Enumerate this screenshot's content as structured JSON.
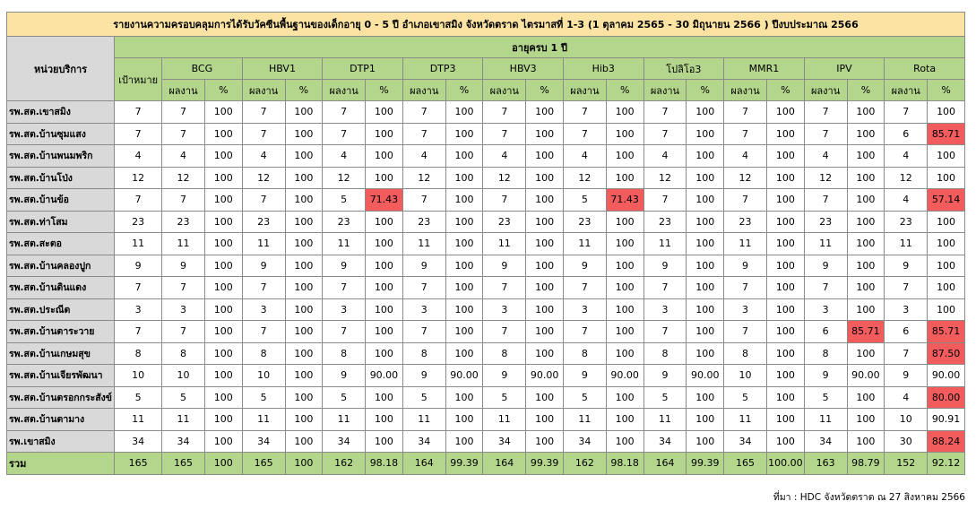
{
  "title": "รายงานความครอบคลุมการได้รับวัคซีนพื้นฐานของเด็กอายุ 0 - 5 ปี อำเภอเขาสมิง จังหวัดตราด ไตรมาสที่ 1-3 (1 ตุลาคม 2565 - 30 มิถุนายน 2566 ) ปีงบประมาณ 2566",
  "unit_header": "หน่วยบริการ",
  "age_group": "อายุครบ 1 ปี",
  "target_header": "เป้าหมาย",
  "result_header": "ผลงาน",
  "pct_header": "%",
  "vaccines": [
    "BCG",
    "HBV1",
    "DTP1",
    "DTP3",
    "HBV3",
    "Hib3",
    "โปลิโอ3",
    "MMR1",
    "IPV",
    "Rota"
  ],
  "rows": [
    {
      "unit": "รพ.สต.เขาสมิง",
      "target": "7",
      "cells": [
        [
          "7",
          "100"
        ],
        [
          "7",
          "100"
        ],
        [
          "7",
          "100"
        ],
        [
          "7",
          "100"
        ],
        [
          "7",
          "100"
        ],
        [
          "7",
          "100"
        ],
        [
          "7",
          "100"
        ],
        [
          "7",
          "100"
        ],
        [
          "7",
          "100"
        ],
        [
          "7",
          "100"
        ]
      ]
    },
    {
      "unit": "รพ.สต.บ้านซุมแสง",
      "target": "7",
      "cells": [
        [
          "7",
          "100"
        ],
        [
          "7",
          "100"
        ],
        [
          "7",
          "100"
        ],
        [
          "7",
          "100"
        ],
        [
          "7",
          "100"
        ],
        [
          "7",
          "100"
        ],
        [
          "7",
          "100"
        ],
        [
          "7",
          "100"
        ],
        [
          "7",
          "100"
        ],
        [
          "6",
          "85.71"
        ]
      ]
    },
    {
      "unit": "รพ.สต.บ้านพนมพริก",
      "target": "4",
      "cells": [
        [
          "4",
          "100"
        ],
        [
          "4",
          "100"
        ],
        [
          "4",
          "100"
        ],
        [
          "4",
          "100"
        ],
        [
          "4",
          "100"
        ],
        [
          "4",
          "100"
        ],
        [
          "4",
          "100"
        ],
        [
          "4",
          "100"
        ],
        [
          "4",
          "100"
        ],
        [
          "4",
          "100"
        ]
      ]
    },
    {
      "unit": "รพ.สต.บ้านโป่ง",
      "target": "12",
      "cells": [
        [
          "12",
          "100"
        ],
        [
          "12",
          "100"
        ],
        [
          "12",
          "100"
        ],
        [
          "12",
          "100"
        ],
        [
          "12",
          "100"
        ],
        [
          "12",
          "100"
        ],
        [
          "12",
          "100"
        ],
        [
          "12",
          "100"
        ],
        [
          "12",
          "100"
        ],
        [
          "12",
          "100"
        ]
      ]
    },
    {
      "unit": "รพ.สต.บ้านข้อ",
      "target": "7",
      "cells": [
        [
          "7",
          "100"
        ],
        [
          "7",
          "100"
        ],
        [
          "5",
          "71.43"
        ],
        [
          "7",
          "100"
        ],
        [
          "7",
          "100"
        ],
        [
          "5",
          "71.43"
        ],
        [
          "7",
          "100"
        ],
        [
          "7",
          "100"
        ],
        [
          "7",
          "100"
        ],
        [
          "4",
          "57.14"
        ]
      ]
    },
    {
      "unit": "รพ.สต.ท่าโสม",
      "target": "23",
      "cells": [
        [
          "23",
          "100"
        ],
        [
          "23",
          "100"
        ],
        [
          "23",
          "100"
        ],
        [
          "23",
          "100"
        ],
        [
          "23",
          "100"
        ],
        [
          "23",
          "100"
        ],
        [
          "23",
          "100"
        ],
        [
          "23",
          "100"
        ],
        [
          "23",
          "100"
        ],
        [
          "23",
          "100"
        ]
      ]
    },
    {
      "unit": "รพ.สต.สะตอ",
      "target": "11",
      "cells": [
        [
          "11",
          "100"
        ],
        [
          "11",
          "100"
        ],
        [
          "11",
          "100"
        ],
        [
          "11",
          "100"
        ],
        [
          "11",
          "100"
        ],
        [
          "11",
          "100"
        ],
        [
          "11",
          "100"
        ],
        [
          "11",
          "100"
        ],
        [
          "11",
          "100"
        ],
        [
          "11",
          "100"
        ]
      ]
    },
    {
      "unit": "รพ.สต.บ้านคลองปูก",
      "target": "9",
      "cells": [
        [
          "9",
          "100"
        ],
        [
          "9",
          "100"
        ],
        [
          "9",
          "100"
        ],
        [
          "9",
          "100"
        ],
        [
          "9",
          "100"
        ],
        [
          "9",
          "100"
        ],
        [
          "9",
          "100"
        ],
        [
          "9",
          "100"
        ],
        [
          "9",
          "100"
        ],
        [
          "9",
          "100"
        ]
      ]
    },
    {
      "unit": "รพ.สต.บ้านดินแดง",
      "target": "7",
      "cells": [
        [
          "7",
          "100"
        ],
        [
          "7",
          "100"
        ],
        [
          "7",
          "100"
        ],
        [
          "7",
          "100"
        ],
        [
          "7",
          "100"
        ],
        [
          "7",
          "100"
        ],
        [
          "7",
          "100"
        ],
        [
          "7",
          "100"
        ],
        [
          "7",
          "100"
        ],
        [
          "7",
          "100"
        ]
      ]
    },
    {
      "unit": "รพ.สต.ประณีต",
      "target": "3",
      "cells": [
        [
          "3",
          "100"
        ],
        [
          "3",
          "100"
        ],
        [
          "3",
          "100"
        ],
        [
          "3",
          "100"
        ],
        [
          "3",
          "100"
        ],
        [
          "3",
          "100"
        ],
        [
          "3",
          "100"
        ],
        [
          "3",
          "100"
        ],
        [
          "3",
          "100"
        ],
        [
          "3",
          "100"
        ]
      ]
    },
    {
      "unit": "รพ.สต.บ้านตาระวาย",
      "target": "7",
      "cells": [
        [
          "7",
          "100"
        ],
        [
          "7",
          "100"
        ],
        [
          "7",
          "100"
        ],
        [
          "7",
          "100"
        ],
        [
          "7",
          "100"
        ],
        [
          "7",
          "100"
        ],
        [
          "7",
          "100"
        ],
        [
          "7",
          "100"
        ],
        [
          "6",
          "85.71"
        ],
        [
          "6",
          "85.71"
        ]
      ]
    },
    {
      "unit": "รพ.สต.บ้านเกษมสุข",
      "target": "8",
      "cells": [
        [
          "8",
          "100"
        ],
        [
          "8",
          "100"
        ],
        [
          "8",
          "100"
        ],
        [
          "8",
          "100"
        ],
        [
          "8",
          "100"
        ],
        [
          "8",
          "100"
        ],
        [
          "8",
          "100"
        ],
        [
          "8",
          "100"
        ],
        [
          "8",
          "100"
        ],
        [
          "7",
          "87.50"
        ]
      ]
    },
    {
      "unit": "รพ.สต.บ้านเจียรพัฒนา",
      "target": "10",
      "cells": [
        [
          "10",
          "100"
        ],
        [
          "10",
          "100"
        ],
        [
          "9",
          "90.00"
        ],
        [
          "9",
          "90.00"
        ],
        [
          "9",
          "90.00"
        ],
        [
          "9",
          "90.00"
        ],
        [
          "9",
          "90.00"
        ],
        [
          "10",
          "100"
        ],
        [
          "9",
          "90.00"
        ],
        [
          "9",
          "90.00"
        ]
      ]
    },
    {
      "unit": "รพ.สต.บ้านตรอกกระสังข์",
      "target": "5",
      "cells": [
        [
          "5",
          "100"
        ],
        [
          "5",
          "100"
        ],
        [
          "5",
          "100"
        ],
        [
          "5",
          "100"
        ],
        [
          "5",
          "100"
        ],
        [
          "5",
          "100"
        ],
        [
          "5",
          "100"
        ],
        [
          "5",
          "100"
        ],
        [
          "5",
          "100"
        ],
        [
          "4",
          "80.00"
        ]
      ]
    },
    {
      "unit": "รพ.สต.บ้านตามาง",
      "target": "11",
      "cells": [
        [
          "11",
          "100"
        ],
        [
          "11",
          "100"
        ],
        [
          "11",
          "100"
        ],
        [
          "11",
          "100"
        ],
        [
          "11",
          "100"
        ],
        [
          "11",
          "100"
        ],
        [
          "11",
          "100"
        ],
        [
          "11",
          "100"
        ],
        [
          "11",
          "100"
        ],
        [
          "10",
          "90.91"
        ]
      ]
    },
    {
      "unit": "รพ.เขาสมิง",
      "target": "34",
      "cells": [
        [
          "34",
          "100"
        ],
        [
          "34",
          "100"
        ],
        [
          "34",
          "100"
        ],
        [
          "34",
          "100"
        ],
        [
          "34",
          "100"
        ],
        [
          "34",
          "100"
        ],
        [
          "34",
          "100"
        ],
        [
          "34",
          "100"
        ],
        [
          "34",
          "100"
        ],
        [
          "30",
          "88.24"
        ]
      ]
    }
  ],
  "total": {
    "unit": "รวม",
    "target": "165",
    "cells": [
      [
        "165",
        "100"
      ],
      [
        "165",
        "100"
      ],
      [
        "162",
        "98.18"
      ],
      [
        "164",
        "99.39"
      ],
      [
        "164",
        "99.39"
      ],
      [
        "162",
        "98.18"
      ],
      [
        "164",
        "99.39"
      ],
      [
        "165",
        "100.00"
      ],
      [
        "163",
        "98.79"
      ],
      [
        "152",
        "92.12"
      ]
    ]
  },
  "highlight_color": "#f25c5c",
  "highlighted_cells": [
    {
      "unit": "รพ.สต.บ้านซุมแสง",
      "vaccine": "Rota"
    },
    {
      "unit": "รพ.สต.บ้านข้อ",
      "vaccine": "DTP1"
    },
    {
      "unit": "รพ.สต.บ้านข้อ",
      "vaccine": "Hib3"
    },
    {
      "unit": "รพ.สต.บ้านข้อ",
      "vaccine": "Rota"
    },
    {
      "unit": "รพ.สต.บ้านตาระวาย",
      "vaccine": "IPV"
    },
    {
      "unit": "รพ.สต.บ้านตาระวาย",
      "vaccine": "Rota"
    },
    {
      "unit": "รพ.สต.บ้านเกษมสุข",
      "vaccine": "Rota"
    },
    {
      "unit": "รพ.สต.บ้านตรอกกระสังข์",
      "vaccine": "Rota"
    },
    {
      "unit": "รพ.เขาสมิง",
      "vaccine": "Rota"
    }
  ],
  "source": "ที่มา : HDC จังหวัดตราด ณ 27 สิงหาคม 2566"
}
